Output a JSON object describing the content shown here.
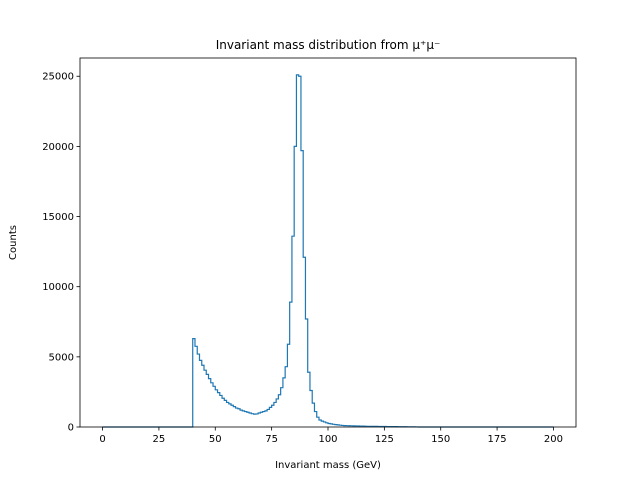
{
  "chart_data": {
    "type": "bar",
    "title": "Invariant mass distribution from μ⁺μ⁻",
    "xlabel": "Invariant mass (GeV)",
    "ylabel": "Counts",
    "xlim": [
      -10,
      210
    ],
    "ylim": [
      0,
      26300
    ],
    "xticks": [
      0,
      25,
      50,
      75,
      100,
      125,
      150,
      175,
      200
    ],
    "yticks": [
      0,
      5000,
      10000,
      15000,
      20000,
      25000
    ],
    "grid": false,
    "histogram": {
      "style": "step",
      "color": "#1f77b4",
      "bin_edges_range": [
        0,
        200
      ],
      "bin_width": 1,
      "counts": [
        0,
        0,
        0,
        0,
        0,
        0,
        0,
        0,
        0,
        0,
        0,
        0,
        0,
        0,
        0,
        0,
        0,
        0,
        0,
        0,
        0,
        0,
        0,
        0,
        0,
        0,
        0,
        0,
        0,
        0,
        0,
        0,
        0,
        0,
        0,
        0,
        0,
        0,
        0,
        0,
        6300,
        5750,
        5200,
        4750,
        4400,
        4050,
        3750,
        3450,
        3150,
        2900,
        2650,
        2450,
        2250,
        2050,
        1900,
        1750,
        1650,
        1550,
        1450,
        1350,
        1300,
        1200,
        1150,
        1100,
        1050,
        1000,
        950,
        920,
        930,
        1000,
        1050,
        1100,
        1150,
        1250,
        1400,
        1550,
        1750,
        2000,
        2300,
        2800,
        3500,
        4300,
        5900,
        8900,
        13600,
        20000,
        25100,
        25000,
        19700,
        12100,
        7700,
        3900,
        2600,
        1700,
        1100,
        700,
        500,
        420,
        360,
        300,
        250,
        220,
        190,
        170,
        150,
        130,
        110,
        100,
        95,
        90,
        85,
        80,
        75,
        70,
        65,
        60,
        55,
        50,
        48,
        46,
        44,
        42,
        40,
        38,
        36,
        34,
        32,
        30,
        28,
        26,
        24,
        22,
        20,
        18,
        16,
        14,
        12,
        10,
        8,
        6,
        0,
        0,
        0,
        0,
        0,
        0,
        0,
        0,
        0,
        0,
        0,
        0,
        0,
        0,
        0,
        0,
        0,
        0,
        0,
        0,
        0,
        0,
        0,
        0,
        0,
        0,
        0,
        0,
        0,
        0,
        0,
        0,
        0,
        0,
        0,
        0,
        0,
        0,
        0,
        0,
        0,
        0,
        0,
        0,
        0,
        0,
        0,
        0,
        0,
        0,
        0,
        0,
        0,
        0,
        0,
        0,
        0,
        0,
        0,
        0
      ]
    }
  }
}
